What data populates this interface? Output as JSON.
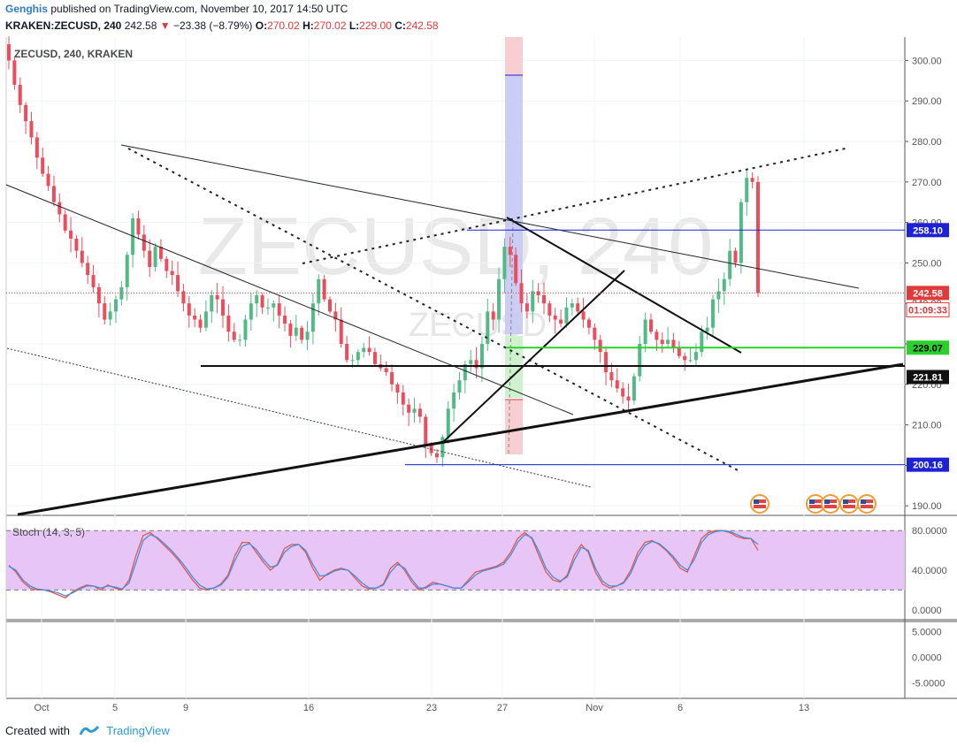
{
  "header": {
    "author": "Genghis",
    "published_text": " published on TradingView.com, November 10, 2017 14:50 UTC",
    "symbol_line": "KRAKEN:ZECUSD, 240",
    "last": "242.58",
    "change_arrow": "▼",
    "change": "−23.38 (−8.79%)",
    "o_label": "O:",
    "o": "270.02",
    "h_label": "H:",
    "h": "270.02",
    "l_label": "L:",
    "l": "229.00",
    "c_label": "C:",
    "c": "242.58"
  },
  "pane_title": "ZECUSD, 240, KRAKEN",
  "watermark": "ZECUSD, 240",
  "watermark2": "ZECUSD",
  "stoch_title": "Stoch (14, 3, 5)",
  "footer": {
    "created_with": "Created with",
    "brand": "TradingView"
  },
  "colors": {
    "up": "#53b987",
    "down": "#eb4d5c",
    "price_line": "#e03a3a",
    "blue_level": "#1e22d6",
    "green_level": "#2ad12a",
    "stoch_fill": "#e7c6f7",
    "k_line": "#e9554a",
    "d_line": "#3f8fe0"
  },
  "chart_data": [
    {
      "type": "candlestick",
      "symbol": "KRAKEN:ZECUSD",
      "timeframe": "240",
      "y_axis": {
        "ticks": [
          "300.00",
          "290.00",
          "280.00",
          "270.00",
          "260.00",
          "250.00",
          "240.00",
          "230.00",
          "220.00",
          "210.00",
          "200.00",
          "190.00"
        ],
        "ylim": [
          184,
          302
        ]
      },
      "x_axis": {
        "ticks": [
          "Oct",
          "5",
          "9",
          "16",
          "23",
          "27",
          "Nov",
          "6",
          "13"
        ]
      },
      "price_labels": [
        {
          "value": "258.10",
          "kind": "blue"
        },
        {
          "value": "242.58",
          "kind": "last"
        },
        {
          "value": "01:09:33",
          "kind": "countdown"
        },
        {
          "value": "229.07",
          "kind": "green"
        },
        {
          "value": "221.81",
          "kind": "black"
        },
        {
          "value": "200.16",
          "kind": "blue"
        }
      ],
      "close_series": [
        300,
        294,
        289,
        285,
        281,
        276,
        272,
        269,
        265,
        262,
        258,
        256,
        253,
        250,
        247,
        244,
        240,
        236,
        238,
        241,
        244,
        252,
        261,
        257,
        253,
        249,
        254,
        251,
        248,
        247,
        243,
        240,
        237,
        236,
        234,
        238,
        242,
        241,
        237,
        233,
        231,
        231,
        236,
        240,
        242,
        239,
        239,
        240,
        237,
        235,
        232,
        234,
        231,
        233,
        240,
        246,
        241,
        238,
        236,
        230,
        226,
        226,
        228,
        229,
        228,
        225,
        224,
        223,
        220,
        218,
        215,
        213,
        214,
        212,
        205,
        203,
        202,
        207,
        214,
        218,
        221,
        225,
        226,
        224,
        230,
        238,
        236,
        246,
        254,
        252,
        245,
        240,
        238,
        243,
        242,
        240,
        237,
        236,
        235,
        239,
        240,
        238,
        236,
        234,
        231,
        228,
        223,
        221,
        219,
        217,
        216,
        222,
        230,
        236,
        233,
        231,
        230,
        231,
        229,
        227,
        226,
        226,
        228,
        233,
        234,
        241,
        243,
        246,
        253,
        250,
        265,
        271,
        270,
        242.58
      ]
    },
    {
      "type": "line",
      "title": "Stoch (14, 3, 5)",
      "y_axis": {
        "ticks": [
          "80.0000",
          "40.0000",
          "0.0000"
        ],
        "ylim": [
          -10,
          90
        ]
      },
      "bands": [
        80,
        20
      ],
      "series": [
        {
          "values": [
            45,
            38,
            28,
            22,
            20,
            20,
            18,
            15,
            12,
            18,
            22,
            25,
            24,
            20,
            25,
            22,
            20,
            30,
            55,
            75,
            78,
            72,
            65,
            58,
            50,
            40,
            30,
            22,
            20,
            22,
            26,
            35,
            55,
            68,
            68,
            58,
            48,
            40,
            46,
            62,
            66,
            66,
            58,
            42,
            30,
            36,
            40,
            42,
            40,
            32,
            24,
            21,
            22,
            26,
            42,
            48,
            40,
            28,
            20,
            23,
            28,
            26,
            24,
            22,
            22,
            30,
            38,
            40,
            42,
            44,
            48,
            58,
            72,
            78,
            72,
            55,
            38,
            30,
            28,
            35,
            55,
            66,
            58,
            38,
            26,
            22,
            24,
            28,
            40,
            58,
            68,
            70,
            66,
            60,
            52,
            42,
            38,
            55,
            72,
            78,
            80,
            80,
            78,
            74,
            72,
            72,
            60
          ]
        },
        {
          "values": [
            44,
            40,
            30,
            24,
            21,
            20,
            19,
            17,
            14,
            17,
            21,
            24,
            24,
            22,
            24,
            23,
            21,
            27,
            48,
            70,
            76,
            73,
            67,
            60,
            52,
            43,
            33,
            25,
            21,
            22,
            25,
            33,
            50,
            64,
            67,
            61,
            51,
            43,
            45,
            58,
            64,
            66,
            60,
            46,
            34,
            35,
            39,
            41,
            40,
            34,
            27,
            22,
            22,
            25,
            38,
            46,
            42,
            31,
            22,
            22,
            26,
            26,
            24,
            22,
            22,
            28,
            35,
            39,
            41,
            43,
            46,
            55,
            68,
            76,
            73,
            59,
            42,
            33,
            29,
            33,
            50,
            63,
            60,
            42,
            29,
            24,
            24,
            27,
            37,
            54,
            65,
            69,
            67,
            61,
            54,
            45,
            40,
            51,
            68,
            76,
            79,
            80,
            79,
            76,
            73,
            72,
            66
          ]
        }
      ]
    },
    {
      "type": "line",
      "title": "",
      "y_axis": {
        "ticks": [
          "5.0000",
          "0.0000",
          "-5.0000"
        ],
        "ylim": [
          -8,
          7
        ]
      },
      "series": []
    }
  ]
}
